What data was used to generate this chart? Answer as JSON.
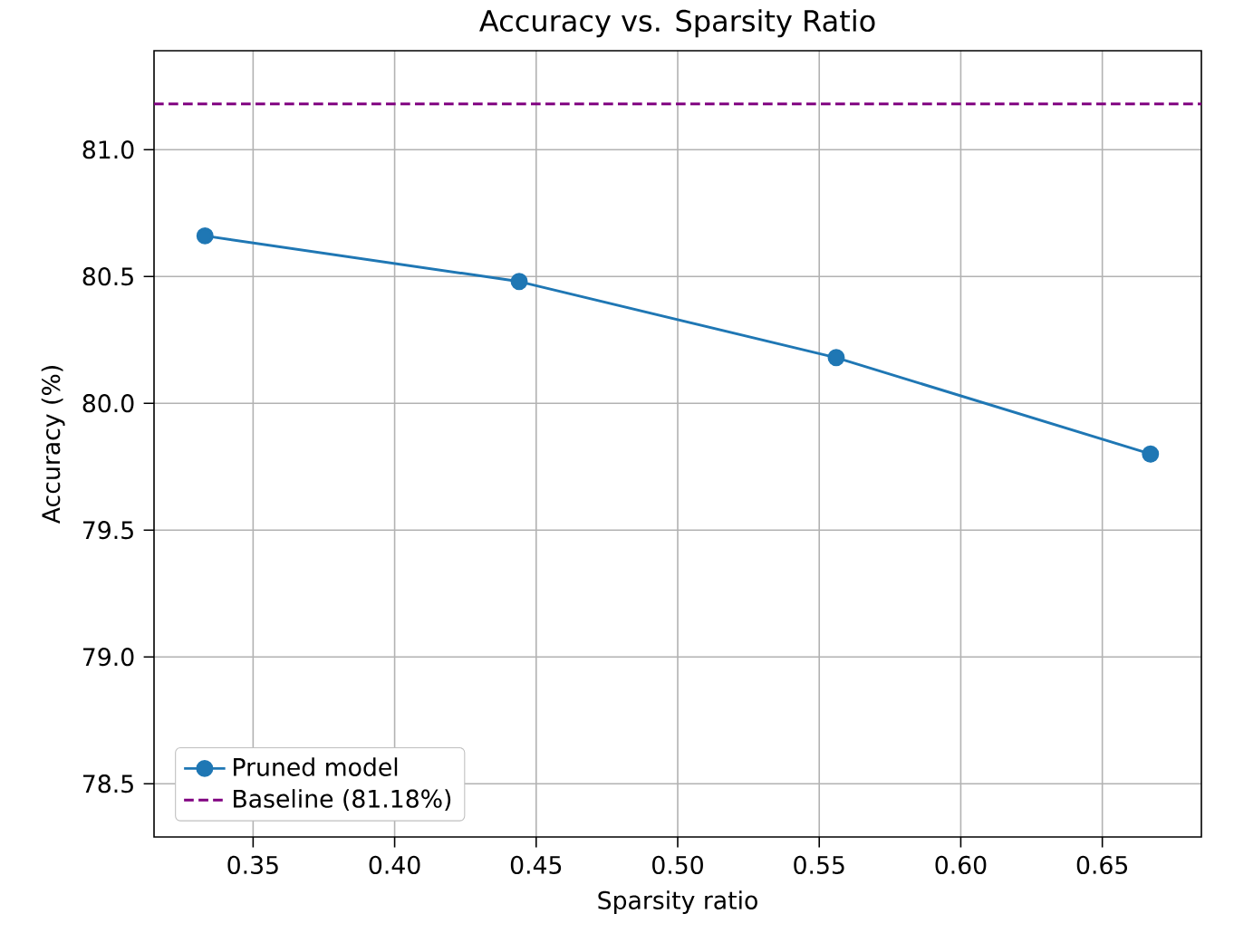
{
  "chart_data": {
    "type": "line",
    "title": "Accuracy vs. Sparsity Ratio",
    "xlabel": "Sparsity ratio",
    "ylabel": "Accuracy (%)",
    "x": [
      0.333,
      0.444,
      0.556,
      0.667
    ],
    "series": [
      {
        "name": "Pruned model",
        "color": "#1f77b4",
        "values": [
          80.66,
          80.48,
          80.18,
          79.8
        ]
      }
    ],
    "ref_lines": [
      {
        "axis": "y",
        "value": 81.18,
        "label": "Baseline (81.18%)",
        "color": "#800080",
        "line_style": "dashed"
      }
    ],
    "xlim": [
      0.315,
      0.685
    ],
    "ylim": [
      78.29,
      81.39
    ],
    "xticks": [
      0.35,
      {
        "value": 0.4,
        "label": "0.40"
      },
      0.45,
      {
        "value": 0.5,
        "label": "0.50"
      },
      0.55,
      {
        "value": 0.6,
        "label": "0.60"
      },
      0.65
    ],
    "yticks": [
      78.5,
      {
        "value": 79,
        "label": "79.0"
      },
      79.5,
      {
        "value": 80,
        "label": "80.0"
      },
      80.5,
      {
        "value": 81,
        "label": "81.0"
      }
    ],
    "grid": true,
    "legend": "bottom left",
    "marker": "circle",
    "line_style": "solid"
  }
}
